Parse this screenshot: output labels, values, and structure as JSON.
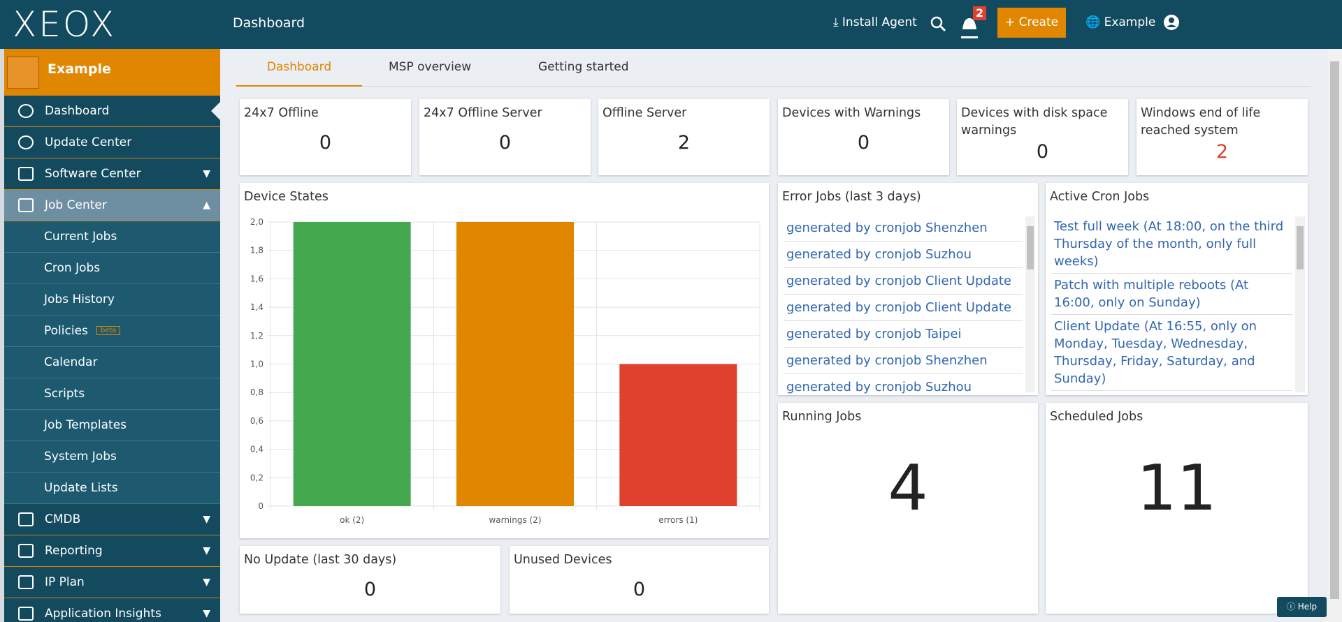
{
  "header": {
    "logo": "XEOX",
    "title": "Dashboard",
    "install_agent": "Install Agent",
    "notifications": "2",
    "create": "Create",
    "tenant": "Example"
  },
  "sidebar": {
    "tenant": "Example",
    "menu": [
      "Dashboard",
      "Update Center",
      "Software Center",
      "Job Center"
    ],
    "job_center": [
      "Current Jobs",
      "Cron Jobs",
      "Jobs History",
      "Policies",
      "Calendar",
      "Scripts",
      "Job Templates",
      "System Jobs",
      "Update Lists"
    ],
    "beta_badge": "beta",
    "more": [
      "CMDB",
      "Reporting",
      "IP Plan",
      "Application Insights"
    ]
  },
  "tabs": [
    "Dashboard",
    "MSP overview",
    "Getting started"
  ],
  "cards": [
    {
      "title": "24x7 Offline",
      "value": 0
    },
    {
      "title": "24x7 Offline Server",
      "value": 0
    },
    {
      "title": "Offline Server",
      "value": 2
    },
    {
      "title": "Devices with Warnings",
      "value": 0
    },
    {
      "title": "Devices with disk space warnings",
      "value": 0
    },
    {
      "title": "Windows end of life reached system",
      "value": 2,
      "color": "#e0402e"
    }
  ],
  "bottom_cards": [
    {
      "title": "No Update (last 30 days)",
      "value": 0
    },
    {
      "title": "Unused Devices",
      "value": 0
    }
  ],
  "chart_data": {
    "type": "bar",
    "title": "Device States",
    "categories": [
      "ok (2)",
      "warnings (2)",
      "errors (1)"
    ],
    "values": [
      2,
      2,
      1
    ],
    "colors": [
      "#43a84e",
      "#e08600",
      "#e0402e"
    ],
    "ylim": [
      0,
      2
    ],
    "yticks": [
      {
        "value": 0,
        "label": "0"
      },
      {
        "value": 0.2,
        "label": "0,2"
      },
      {
        "value": 0.4,
        "label": "0,4"
      },
      {
        "value": 0.6,
        "label": "0,6"
      },
      {
        "value": 0.8,
        "label": "0,8"
      },
      {
        "value": 1,
        "label": "1,0"
      },
      {
        "value": 1.2,
        "label": "1,2"
      },
      {
        "value": 1.4,
        "label": "1,4"
      },
      {
        "value": 1.6,
        "label": "1,6"
      },
      {
        "value": 1.8,
        "label": "1,8"
      },
      {
        "value": 2,
        "label": "2,0"
      }
    ],
    "grid": true
  },
  "error_jobs": {
    "title": "Error Jobs (last 3 days)",
    "items": [
      "generated by cronjob Shenzhen",
      "generated by cronjob Suzhou",
      "generated by cronjob Client Update",
      "generated by cronjob Client Update",
      "generated by cronjob Taipei",
      "generated by cronjob Shenzhen",
      "generated by cronjob Suzhou"
    ]
  },
  "cron_jobs": {
    "title": "Active Cron Jobs",
    "items": [
      "Test full week (At 18:00, on the third Thursday of the month, only full weeks)",
      "Patch with multiple reboots (At 16:00, only on Sunday)",
      "Client Update (At 16:55, only on Monday, Tuesday, Wednesday, Thursday, Friday, Saturday, and Sunday)"
    ]
  },
  "running_jobs": {
    "title": "Running Jobs",
    "value": 4
  },
  "scheduled_jobs": {
    "title": "Scheduled Jobs",
    "value": 11
  },
  "help": "Help"
}
